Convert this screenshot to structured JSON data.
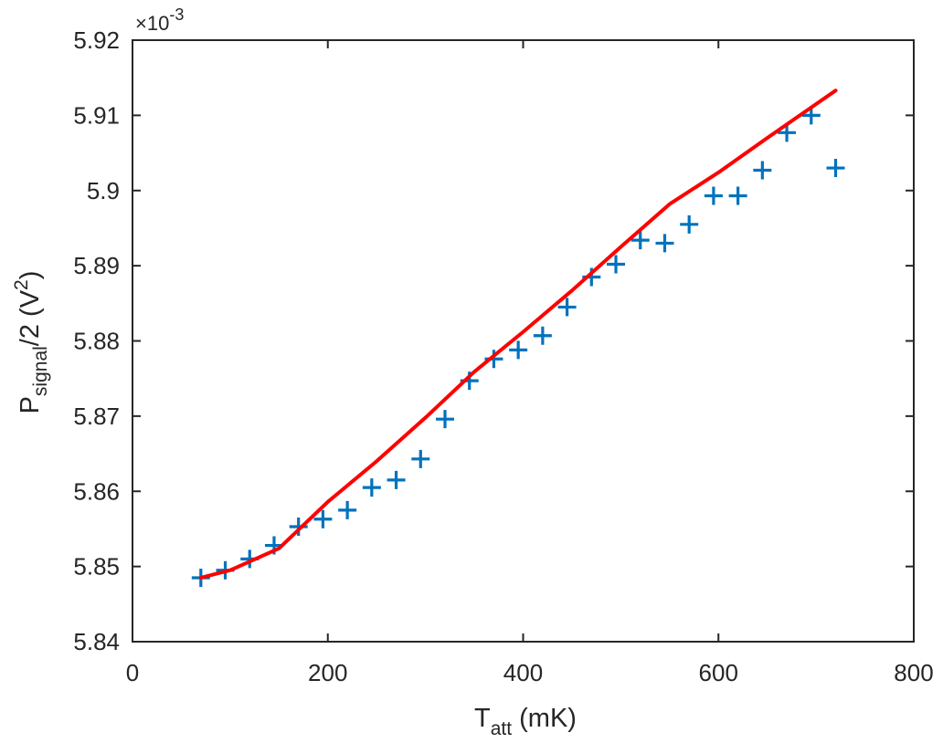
{
  "chart_data": {
    "type": "scatter",
    "xlim": [
      0,
      800
    ],
    "ylim": [
      0.00584,
      0.00592
    ],
    "x_ticks": [
      0,
      200,
      400,
      600,
      800
    ],
    "x_tick_labels": [
      "0",
      "200",
      "400",
      "600",
      "800"
    ],
    "y_ticks": [
      0.00584,
      0.00585,
      0.00586,
      0.00587,
      0.00588,
      0.00589,
      0.0059,
      0.00591,
      0.00592
    ],
    "y_tick_labels": [
      "5.84",
      "5.85",
      "5.86",
      "5.87",
      "5.88",
      "5.89",
      "5.9",
      "5.91",
      "5.92"
    ],
    "y_exponent": {
      "base": "×10",
      "power": "-3"
    },
    "xlabel": {
      "main": "T",
      "sub": "att",
      "rest": " (mK)"
    },
    "ylabel": {
      "main": "P",
      "sub": "signal",
      "mid": "/2 (V",
      "sup": "2",
      "end": ")"
    },
    "grid": false,
    "series": [
      {
        "kind": "markers",
        "marker": "plus",
        "color": "#0072BD",
        "x": [
          70,
          95,
          120,
          145,
          170,
          195,
          220,
          245,
          270,
          295,
          320,
          345,
          370,
          395,
          420,
          445,
          470,
          495,
          520,
          545,
          570,
          595,
          620,
          645,
          670,
          695,
          720
        ],
        "y": [
          0.0058485,
          0.0058495,
          0.005851,
          0.0058528,
          0.0058553,
          0.0058563,
          0.0058575,
          0.0058605,
          0.0058615,
          0.0058643,
          0.0058696,
          0.0058747,
          0.0058776,
          0.0058788,
          0.0058807,
          0.0058845,
          0.0058885,
          0.0058902,
          0.0058934,
          0.005893,
          0.0058955,
          0.0058993,
          0.0058993,
          0.0059027,
          0.0059077,
          0.00591,
          0.005903
        ]
      },
      {
        "kind": "line",
        "color": "#FF0000",
        "x": [
          70,
          100,
          150,
          200,
          250,
          300,
          350,
          400,
          450,
          500,
          550,
          600,
          650,
          700,
          720
        ],
        "y": [
          0.0058485,
          0.0058495,
          0.0058524,
          0.0058586,
          0.005864,
          0.0058698,
          0.0058759,
          0.0058812,
          0.0058867,
          0.0058925,
          0.0058982,
          0.0059024,
          0.005907,
          0.0059115,
          0.0059133
        ]
      }
    ]
  }
}
